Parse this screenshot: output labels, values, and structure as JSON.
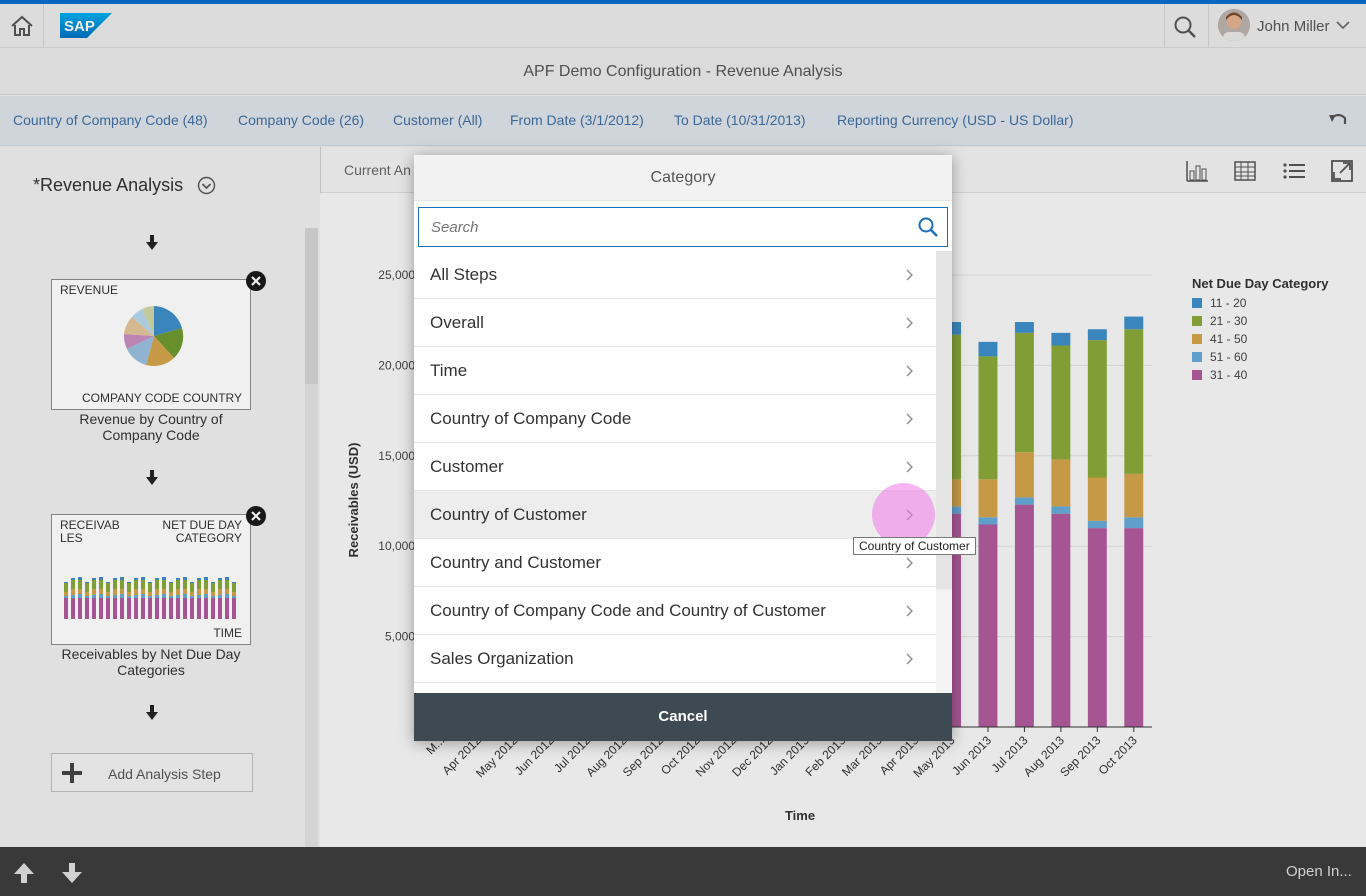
{
  "shell": {
    "user_name": "John Miller"
  },
  "page_title": "APF Demo Configuration - Revenue Analysis",
  "filters": [
    "Country of Company Code (48)",
    "Company Code (26)",
    "Customer (All)",
    "From Date (3/1/2012)",
    "To Date (10/31/2013)",
    "Reporting Currency (USD - US Dollar)"
  ],
  "analysis": {
    "title": "*Revenue Analysis",
    "steps": [
      {
        "title": "Revenue by Country of Company Code",
        "top_left": "REVENUE",
        "bottom_right": "COMPANY CODE COUNTRY"
      },
      {
        "title": "Receivables by Net Due Day Categories",
        "top_left": "RECEIVAB\nLES",
        "top_right": "NET DUE DAY\nCATEGORY",
        "bottom_right": "TIME"
      }
    ],
    "add_step_label": "Add Analysis Step"
  },
  "main": {
    "current_analysis_label": "Current An"
  },
  "chart_data": {
    "type": "bar",
    "stacked": true,
    "title": "",
    "xlabel": "Time",
    "ylabel": "Receivables (USD)",
    "y_ticks": [
      "5,000",
      "10,000",
      "15,000",
      "20,000",
      "25,000"
    ],
    "ylim": [
      0,
      25000
    ],
    "legend_title": "Net Due Day Category",
    "legend_position": "top-right",
    "categories": [
      "Mar 2012",
      "Apr 2012",
      "May 2012",
      "Jun 2012",
      "Jul 2012",
      "Aug 2012",
      "Sep 2012",
      "Oct 2012",
      "Nov 2012",
      "Dec 2012",
      "Jan 2013",
      "Feb 2013",
      "Mar 2013",
      "Apr 2013",
      "May 2013",
      "Jun 2013",
      "Jul 2013",
      "Aug 2013",
      "Sep 2013",
      "Oct 2013"
    ],
    "x_tick_labels": [
      "M...",
      "Apr 2012",
      "May 2012",
      "Jun 2012",
      "Jul 2012",
      "Aug 2012",
      "Sep 2012",
      "Oct 2012",
      "Nov 2012",
      "Dec 2012",
      "Jan 2013",
      "Feb 2013",
      "Mar 2013",
      "Apr 2013",
      "May 2013",
      "Jun 2013",
      "Jul 2013",
      "Aug 2013",
      "Sep 2013",
      "Oct 2013"
    ],
    "visible_from_index": 14,
    "series": [
      {
        "name": "31 - 40",
        "color": "#b05b9c",
        "values": [
          null,
          null,
          null,
          null,
          null,
          null,
          null,
          null,
          null,
          null,
          null,
          null,
          null,
          null,
          11800,
          11200,
          12300,
          11800,
          11000,
          11000
        ]
      },
      {
        "name": "51 - 60",
        "color": "#67a9d6",
        "values": [
          null,
          null,
          null,
          null,
          null,
          null,
          null,
          null,
          null,
          null,
          null,
          null,
          null,
          null,
          400,
          400,
          400,
          400,
          400,
          600
        ]
      },
      {
        "name": "41 - 50",
        "color": "#d2a34a",
        "values": [
          null,
          null,
          null,
          null,
          null,
          null,
          null,
          null,
          null,
          null,
          null,
          null,
          null,
          null,
          1500,
          2100,
          2500,
          2600,
          2400,
          2400
        ]
      },
      {
        "name": "21 - 30",
        "color": "#8aa83a",
        "values": [
          null,
          null,
          null,
          null,
          null,
          null,
          null,
          null,
          null,
          null,
          null,
          null,
          null,
          null,
          8000,
          6800,
          6600,
          6300,
          7600,
          8000
        ]
      },
      {
        "name": "11 - 20",
        "color": "#3d8ec8",
        "values": [
          null,
          null,
          null,
          null,
          null,
          null,
          null,
          null,
          null,
          null,
          null,
          null,
          null,
          null,
          700,
          800,
          600,
          700,
          600,
          700
        ]
      }
    ],
    "legend_order": [
      "11 - 20",
      "21 - 30",
      "41 - 50",
      "51 - 60",
      "31 - 40"
    ]
  },
  "dialog": {
    "title": "Category",
    "search_placeholder": "Search",
    "items": [
      "All Steps",
      "Overall",
      "Time",
      "Country of Company Code",
      "Customer",
      "Country of Customer",
      "Country and Customer",
      "Country of Company Code and Country of Customer",
      "Sales Organization"
    ],
    "hovered_index": 5,
    "tooltip": "Country of Customer",
    "cancel_label": "Cancel"
  },
  "footer": {
    "open_in_label": "Open In..."
  }
}
